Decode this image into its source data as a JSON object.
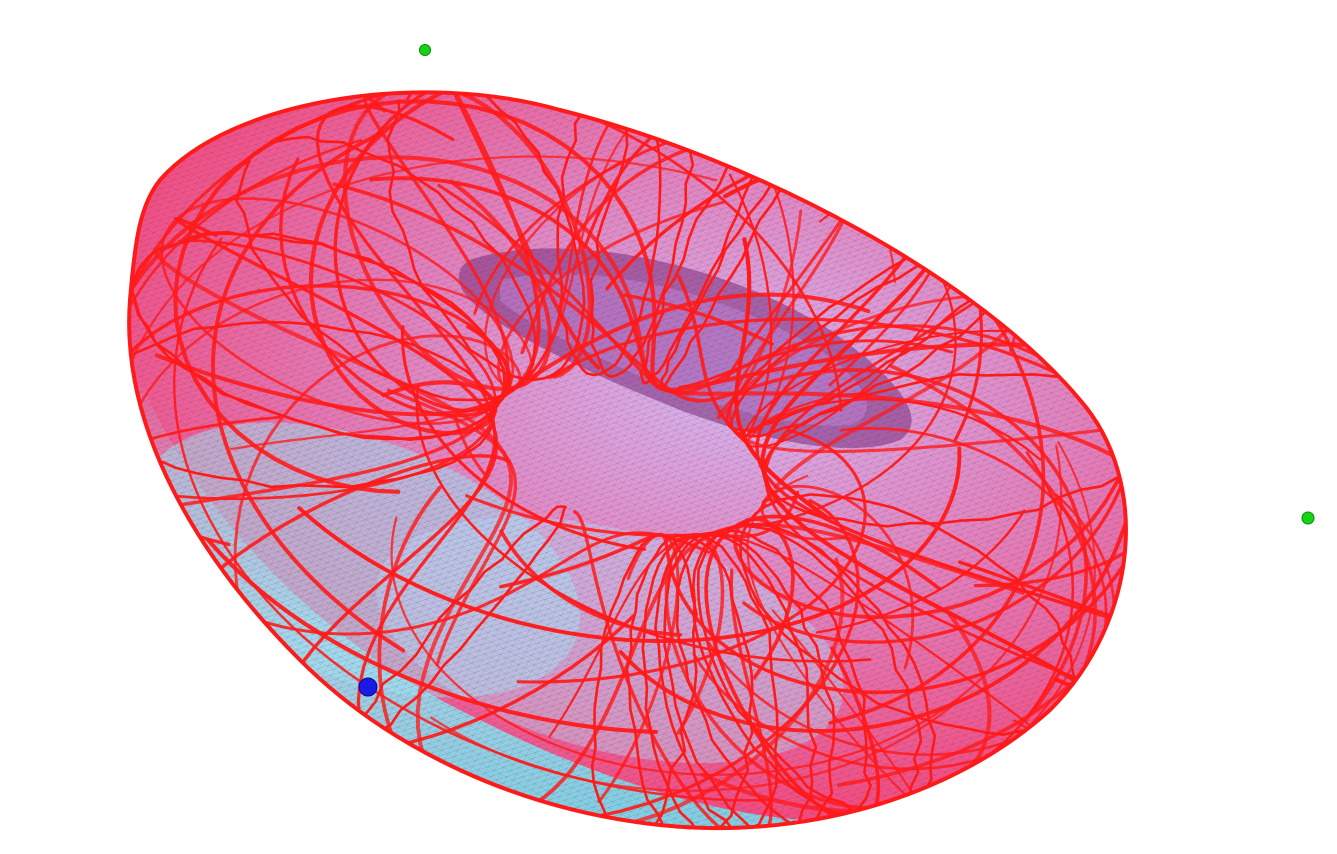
{
  "scene": {
    "background_color": "#ffffff",
    "surface": {
      "type": "torus",
      "fill_colors": [
        "#8fe3f0",
        "#c7b4f2",
        "#e06aa8",
        "#ff2a55"
      ],
      "mesh_color": "#3a4a6a",
      "curve_color": "#ff1a1a"
    },
    "markers": [
      {
        "name": "green-marker-top",
        "color": "#14d414"
      },
      {
        "name": "green-marker-right",
        "color": "#14d414"
      },
      {
        "name": "blue-marker",
        "color": "#1a1ae6"
      }
    ]
  }
}
